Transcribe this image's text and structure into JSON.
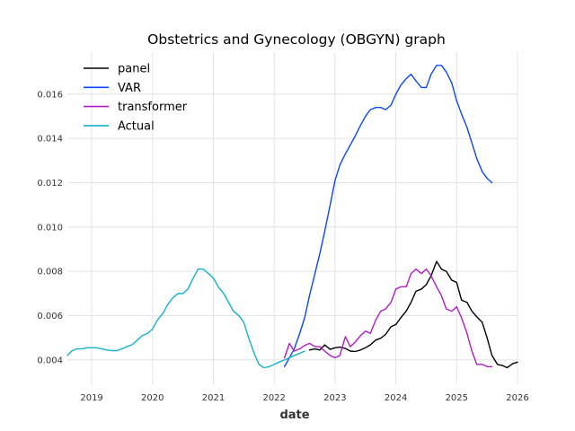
{
  "chart_data": {
    "type": "line",
    "title": "Obstetrics and Gynecology (OBGYN) graph",
    "xlabel": "date",
    "ylabel": "",
    "xlim": [
      2018.6,
      2026.0
    ],
    "ylim": [
      0.0029,
      0.0179
    ],
    "x_ticks": [
      2019,
      2020,
      2021,
      2022,
      2023,
      2024,
      2025,
      2026
    ],
    "x_tick_labels": [
      "2019",
      "2020",
      "2021",
      "2022",
      "2023",
      "2024",
      "2025",
      "2026"
    ],
    "y_ticks": [
      0.004,
      0.006,
      0.008,
      0.01,
      0.012,
      0.014,
      0.016
    ],
    "y_tick_labels": [
      "0.004",
      "0.006",
      "0.008",
      "0.010",
      "0.012",
      "0.014",
      "0.016"
    ],
    "grid": true,
    "legend_position": "top-left",
    "series": [
      {
        "name": "panel",
        "color": "#000000",
        "x": [
          2022.58,
          2022.67,
          2022.75,
          2022.83,
          2022.92,
          2023.0,
          2023.08,
          2023.17,
          2023.25,
          2023.33,
          2023.42,
          2023.5,
          2023.58,
          2023.67,
          2023.75,
          2023.83,
          2023.92,
          2024.0,
          2024.08,
          2024.17,
          2024.25,
          2024.33,
          2024.42,
          2024.5,
          2024.58,
          2024.67,
          2024.75,
          2024.83,
          2024.92,
          2025.0,
          2025.08,
          2025.17,
          2025.25,
          2025.33,
          2025.42,
          2025.5,
          2025.58,
          2025.67,
          2025.75,
          2025.83,
          2025.92,
          2026.0
        ],
        "values": [
          0.00445,
          0.0045,
          0.00445,
          0.00468,
          0.00448,
          0.00455,
          0.00458,
          0.00452,
          0.0044,
          0.00438,
          0.00445,
          0.00455,
          0.00468,
          0.0049,
          0.00498,
          0.00515,
          0.0055,
          0.0056,
          0.0059,
          0.0062,
          0.0066,
          0.0071,
          0.0072,
          0.0074,
          0.0078,
          0.00845,
          0.0081,
          0.008,
          0.0076,
          0.0075,
          0.0067,
          0.0066,
          0.0062,
          0.00595,
          0.0057,
          0.005,
          0.0042,
          0.0038,
          0.00375,
          0.00365,
          0.00383,
          0.0039
        ]
      },
      {
        "name": "VAR",
        "color": "#0a47ff",
        "x": [
          2022.17,
          2022.25,
          2022.33,
          2022.42,
          2022.5,
          2022.58,
          2022.67,
          2022.75,
          2022.83,
          2022.92,
          2023.0,
          2023.08,
          2023.17,
          2023.25,
          2023.33,
          2023.42,
          2023.5,
          2023.58,
          2023.67,
          2023.75,
          2023.83,
          2023.92,
          2024.0,
          2024.08,
          2024.17,
          2024.25,
          2024.33,
          2024.42,
          2024.5,
          2024.58,
          2024.67,
          2024.75,
          2024.83,
          2024.92,
          2025.0,
          2025.08,
          2025.17,
          2025.25,
          2025.33,
          2025.42,
          2025.5,
          2025.58
        ],
        "values": [
          0.0037,
          0.0041,
          0.0045,
          0.0052,
          0.0059,
          0.0069,
          0.0079,
          0.0088,
          0.0098,
          0.011,
          0.0121,
          0.0128,
          0.0133,
          0.0137,
          0.0141,
          0.0146,
          0.015,
          0.0153,
          0.0154,
          0.0154,
          0.0153,
          0.0155,
          0.016,
          0.0164,
          0.0167,
          0.0169,
          0.0166,
          0.0163,
          0.0163,
          0.0169,
          0.0173,
          0.0173,
          0.017,
          0.0165,
          0.0157,
          0.0151,
          0.0145,
          0.0138,
          0.0131,
          0.0125,
          0.0122,
          0.012
        ]
      },
      {
        "name": "transformer",
        "color": "#b21bc7",
        "x": [
          2022.17,
          2022.25,
          2022.33,
          2022.42,
          2022.5,
          2022.58,
          2022.67,
          2022.75,
          2022.83,
          2022.92,
          2023.0,
          2023.08,
          2023.17,
          2023.25,
          2023.33,
          2023.42,
          2023.5,
          2023.58,
          2023.67,
          2023.75,
          2023.83,
          2023.92,
          2024.0,
          2024.08,
          2024.17,
          2024.25,
          2024.33,
          2024.42,
          2024.5,
          2024.58,
          2024.67,
          2024.75,
          2024.83,
          2024.92,
          2025.0,
          2025.08,
          2025.17,
          2025.25,
          2025.33,
          2025.42,
          2025.5,
          2025.58
        ],
        "values": [
          0.0041,
          0.00475,
          0.0044,
          0.0045,
          0.00465,
          0.00475,
          0.0046,
          0.0046,
          0.0044,
          0.0042,
          0.0041,
          0.0042,
          0.00505,
          0.0046,
          0.0048,
          0.0051,
          0.0053,
          0.0052,
          0.0058,
          0.0062,
          0.0063,
          0.0066,
          0.0072,
          0.0073,
          0.0073,
          0.0079,
          0.0081,
          0.0079,
          0.0081,
          0.0078,
          0.0073,
          0.0069,
          0.0063,
          0.0062,
          0.0064,
          0.0059,
          0.0052,
          0.0044,
          0.0038,
          0.0038,
          0.0037,
          0.0037
        ]
      },
      {
        "name": "Actual",
        "color": "#14b3c7",
        "x": [
          2018.6,
          2018.67,
          2018.75,
          2018.83,
          2018.92,
          2019.0,
          2019.08,
          2019.17,
          2019.25,
          2019.33,
          2019.42,
          2019.5,
          2019.58,
          2019.67,
          2019.75,
          2019.83,
          2019.92,
          2020.0,
          2020.08,
          2020.17,
          2020.25,
          2020.33,
          2020.42,
          2020.5,
          2020.58,
          2020.67,
          2020.75,
          2020.83,
          2020.92,
          2021.0,
          2021.08,
          2021.17,
          2021.25,
          2021.33,
          2021.42,
          2021.5,
          2021.58,
          2021.67,
          2021.75,
          2021.83,
          2021.92,
          2022.0,
          2022.08,
          2022.17,
          2022.25,
          2022.33,
          2022.42,
          2022.5
        ],
        "values": [
          0.0042,
          0.0044,
          0.0045,
          0.0045,
          0.00455,
          0.00455,
          0.00455,
          0.0045,
          0.00445,
          0.00442,
          0.00442,
          0.0045,
          0.0046,
          0.0047,
          0.0049,
          0.0051,
          0.0052,
          0.0054,
          0.0058,
          0.0061,
          0.0065,
          0.0068,
          0.007,
          0.007,
          0.0072,
          0.0077,
          0.0081,
          0.0081,
          0.0079,
          0.0077,
          0.0073,
          0.007,
          0.0066,
          0.0062,
          0.006,
          0.0057,
          0.005,
          0.0043,
          0.0038,
          0.00365,
          0.0037,
          0.0038,
          0.0039,
          0.004,
          0.0041,
          0.0042,
          0.0043,
          0.0044
        ]
      }
    ]
  }
}
